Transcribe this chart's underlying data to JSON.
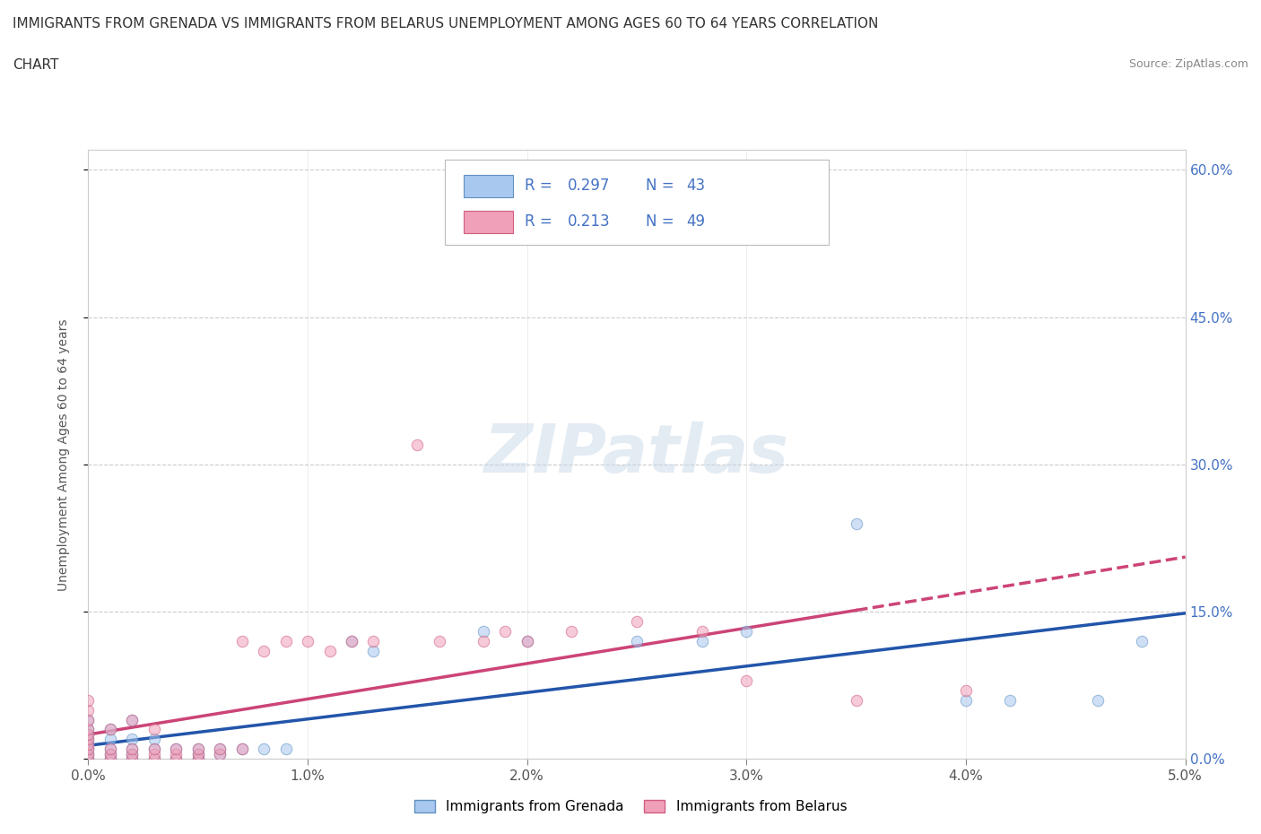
{
  "title_line1": "IMMIGRANTS FROM GRENADA VS IMMIGRANTS FROM BELARUS UNEMPLOYMENT AMONG AGES 60 TO 64 YEARS CORRELATION",
  "title_line2": "CHART",
  "source": "Source: ZipAtlas.com",
  "ylabel": "Unemployment Among Ages 60 to 64 years",
  "xlim": [
    0.0,
    0.05
  ],
  "ylim": [
    0.0,
    0.62
  ],
  "xticks": [
    0.0,
    0.01,
    0.02,
    0.03,
    0.04,
    0.05
  ],
  "xticklabels": [
    "0.0%",
    "1.0%",
    "2.0%",
    "3.0%",
    "4.0%",
    "5.0%"
  ],
  "yticks": [
    0.0,
    0.15,
    0.3,
    0.45,
    0.6
  ],
  "yticklabels": [
    "0.0%",
    "15.0%",
    "30.0%",
    "45.0%",
    "60.0%"
  ],
  "grenada_color": "#a8c8f0",
  "belarus_color": "#f0a0b8",
  "grenada_edge": "#6090c0",
  "belarus_edge": "#d06080",
  "trend_grenada_color": "#2255aa",
  "trend_belarus_color": "#cc4477",
  "R_grenada": 0.297,
  "N_grenada": 43,
  "R_belarus": 0.213,
  "N_belarus": 49,
  "legend_label_grenada": "Immigrants from Grenada",
  "legend_label_belarus": "Immigrants from Belarus",
  "watermark": "ZIPatlas",
  "background_color": "#ffffff",
  "grid_color": "#cccccc",
  "scatter_alpha": 0.55,
  "scatter_size": 80,
  "legend_text_color": "#4472c4",
  "right_axis_color": "#4472c4",
  "grenada_x": [
    0.0,
    0.0,
    0.0,
    0.0,
    0.0,
    0.0,
    0.0,
    0.0,
    0.001,
    0.001,
    0.001,
    0.001,
    0.001,
    0.002,
    0.002,
    0.002,
    0.002,
    0.002,
    0.003,
    0.003,
    0.003,
    0.004,
    0.004,
    0.005,
    0.005,
    0.005,
    0.006,
    0.006,
    0.007,
    0.008,
    0.009,
    0.012,
    0.013,
    0.018,
    0.02,
    0.025,
    0.028,
    0.03,
    0.035,
    0.04,
    0.042,
    0.046,
    0.048
  ],
  "grenada_y": [
    0.0,
    0.005,
    0.01,
    0.015,
    0.02,
    0.025,
    0.03,
    0.04,
    0.0,
    0.005,
    0.01,
    0.02,
    0.03,
    0.0,
    0.005,
    0.01,
    0.02,
    0.04,
    0.0,
    0.01,
    0.02,
    0.0,
    0.01,
    0.0,
    0.005,
    0.01,
    0.005,
    0.01,
    0.01,
    0.01,
    0.01,
    0.12,
    0.11,
    0.13,
    0.12,
    0.12,
    0.12,
    0.13,
    0.24,
    0.06,
    0.06,
    0.06,
    0.12
  ],
  "belarus_x": [
    0.0,
    0.0,
    0.0,
    0.0,
    0.0,
    0.0,
    0.0,
    0.0,
    0.0,
    0.0,
    0.001,
    0.001,
    0.001,
    0.001,
    0.002,
    0.002,
    0.002,
    0.002,
    0.003,
    0.003,
    0.003,
    0.003,
    0.004,
    0.004,
    0.004,
    0.005,
    0.005,
    0.005,
    0.006,
    0.006,
    0.007,
    0.007,
    0.008,
    0.009,
    0.01,
    0.011,
    0.012,
    0.013,
    0.015,
    0.016,
    0.018,
    0.019,
    0.02,
    0.022,
    0.025,
    0.028,
    0.03,
    0.035,
    0.04
  ],
  "belarus_y": [
    0.0,
    0.005,
    0.01,
    0.015,
    0.02,
    0.025,
    0.03,
    0.04,
    0.05,
    0.06,
    0.0,
    0.005,
    0.01,
    0.03,
    0.0,
    0.005,
    0.01,
    0.04,
    0.0,
    0.005,
    0.01,
    0.03,
    0.0,
    0.005,
    0.01,
    0.0,
    0.005,
    0.01,
    0.005,
    0.01,
    0.01,
    0.12,
    0.11,
    0.12,
    0.12,
    0.11,
    0.12,
    0.12,
    0.32,
    0.12,
    0.12,
    0.13,
    0.12,
    0.13,
    0.14,
    0.13,
    0.08,
    0.06,
    0.07
  ]
}
